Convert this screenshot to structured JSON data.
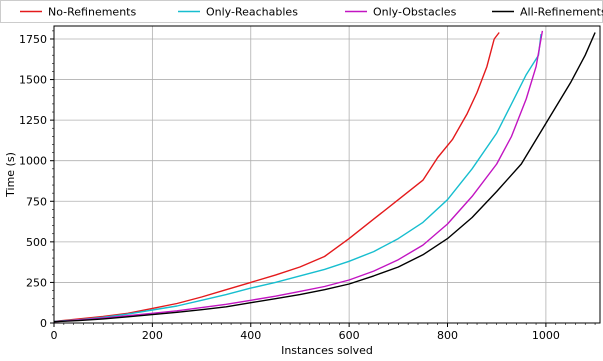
{
  "chart_data": {
    "type": "line",
    "title": "",
    "xlabel": "Instances solved",
    "ylabel": "Time (s)",
    "xlim": [
      0,
      1110
    ],
    "ylim": [
      0,
      1830
    ],
    "xticks": [
      0,
      200,
      400,
      600,
      800,
      1000
    ],
    "yticks": [
      0,
      250,
      500,
      750,
      1000,
      1250,
      1500,
      1750
    ],
    "xtick_labels": [
      "0",
      "200",
      "400",
      "600",
      "800",
      "1000"
    ],
    "ytick_labels": [
      "0",
      "250",
      "500",
      "750",
      "1000",
      "1250",
      "1500",
      "1750"
    ],
    "grid": true,
    "legend": "top, above plot",
    "series": [
      {
        "name": "No-Refinements",
        "color": "#e41a1c",
        "points": [
          [
            0,
            10
          ],
          [
            50,
            25
          ],
          [
            100,
            40
          ],
          [
            150,
            60
          ],
          [
            200,
            90
          ],
          [
            250,
            120
          ],
          [
            300,
            160
          ],
          [
            350,
            205
          ],
          [
            400,
            250
          ],
          [
            450,
            295
          ],
          [
            500,
            345
          ],
          [
            550,
            410
          ],
          [
            600,
            520
          ],
          [
            650,
            640
          ],
          [
            700,
            760
          ],
          [
            750,
            880
          ],
          [
            780,
            1020
          ],
          [
            810,
            1130
          ],
          [
            840,
            1290
          ],
          [
            860,
            1420
          ],
          [
            880,
            1580
          ],
          [
            895,
            1750
          ],
          [
            905,
            1790
          ]
        ]
      },
      {
        "name": "Only-Reachables",
        "color": "#17becf",
        "points": [
          [
            0,
            10
          ],
          [
            50,
            20
          ],
          [
            100,
            35
          ],
          [
            150,
            55
          ],
          [
            200,
            80
          ],
          [
            250,
            105
          ],
          [
            300,
            140
          ],
          [
            350,
            175
          ],
          [
            400,
            215
          ],
          [
            450,
            250
          ],
          [
            500,
            290
          ],
          [
            550,
            330
          ],
          [
            600,
            380
          ],
          [
            650,
            440
          ],
          [
            700,
            520
          ],
          [
            750,
            620
          ],
          [
            800,
            760
          ],
          [
            850,
            950
          ],
          [
            900,
            1170
          ],
          [
            930,
            1350
          ],
          [
            960,
            1530
          ],
          [
            985,
            1650
          ],
          [
            990,
            1780
          ]
        ]
      },
      {
        "name": "Only-Obstacles",
        "color": "#c215c2",
        "points": [
          [
            0,
            8
          ],
          [
            50,
            18
          ],
          [
            100,
            30
          ],
          [
            150,
            45
          ],
          [
            200,
            60
          ],
          [
            250,
            75
          ],
          [
            300,
            95
          ],
          [
            350,
            115
          ],
          [
            400,
            140
          ],
          [
            450,
            165
          ],
          [
            500,
            195
          ],
          [
            550,
            225
          ],
          [
            600,
            265
          ],
          [
            650,
            320
          ],
          [
            700,
            390
          ],
          [
            750,
            480
          ],
          [
            800,
            610
          ],
          [
            850,
            780
          ],
          [
            900,
            980
          ],
          [
            930,
            1150
          ],
          [
            960,
            1380
          ],
          [
            980,
            1580
          ],
          [
            993,
            1800
          ]
        ]
      },
      {
        "name": "All-Refinements",
        "color": "#000000",
        "points": [
          [
            0,
            8
          ],
          [
            50,
            15
          ],
          [
            100,
            25
          ],
          [
            150,
            38
          ],
          [
            200,
            52
          ],
          [
            250,
            66
          ],
          [
            300,
            82
          ],
          [
            350,
            100
          ],
          [
            400,
            125
          ],
          [
            450,
            150
          ],
          [
            500,
            175
          ],
          [
            550,
            205
          ],
          [
            600,
            240
          ],
          [
            650,
            290
          ],
          [
            700,
            345
          ],
          [
            750,
            420
          ],
          [
            800,
            520
          ],
          [
            850,
            650
          ],
          [
            900,
            810
          ],
          [
            950,
            980
          ],
          [
            1000,
            1230
          ],
          [
            1050,
            1480
          ],
          [
            1080,
            1650
          ],
          [
            1100,
            1790
          ]
        ]
      }
    ]
  }
}
